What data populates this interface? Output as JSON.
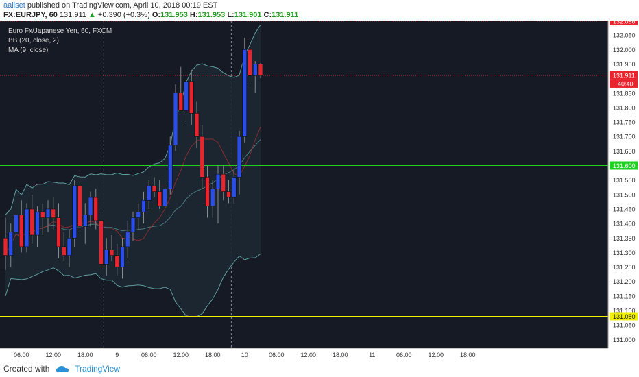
{
  "header": {
    "user": "aallset",
    "published_text": "published on TradingView.com, April 10, 2018 00:19 EST",
    "symbol": "FX:EURJPY, 60",
    "last": "131.911",
    "change": "+0.390 (+0.3%)",
    "o_label": "O:",
    "o": "131.953",
    "h_label": "H:",
    "h": "131.953",
    "l_label": "L:",
    "l": "131.901",
    "c_label": "C:",
    "c": "131.911"
  },
  "legend": {
    "title": "Euro Fx/Japanese Yen, 60, FXCM",
    "bb": "BB (20, close, 2)",
    "ma": "MA (9, close)"
  },
  "footer": {
    "created_with": "Created with",
    "brand": "TradingView"
  },
  "colors": {
    "background": "#161a25",
    "bull": "#2b4ee8",
    "bear": "#e8242e",
    "bb_band": "#5f9e9e",
    "ma": "#8b2c2c",
    "green_level": "#1fd21f",
    "yellow_level": "#f0f000",
    "current_price": "#e8242e"
  },
  "chart_data": {
    "type": "candlestick",
    "y_ticks": [
      "131.000",
      "131.050",
      "131.100",
      "131.150",
      "131.200",
      "131.250",
      "131.300",
      "131.350",
      "131.400",
      "131.450",
      "131.500",
      "131.550",
      "131.600",
      "131.650",
      "131.700",
      "131.750",
      "131.800",
      "131.850",
      "131.900",
      "131.950",
      "132.000",
      "132.050",
      "132.098"
    ],
    "ylim": [
      130.97,
      132.1
    ],
    "x_ticks": [
      {
        "label": "06:00",
        "i": 3
      },
      {
        "label": "12:00",
        "i": 9
      },
      {
        "label": "18:00",
        "i": 15
      },
      {
        "label": "9",
        "i": 21
      },
      {
        "label": "06:00",
        "i": 27
      },
      {
        "label": "12:00",
        "i": 33
      },
      {
        "label": "18:00",
        "i": 39
      },
      {
        "label": "10",
        "i": 45
      },
      {
        "label": "06:00",
        "i": 51
      },
      {
        "label": "12:00",
        "i": 57
      },
      {
        "label": "18:00",
        "i": 63
      },
      {
        "label": "11",
        "i": 69
      },
      {
        "label": "06:00",
        "i": 75
      },
      {
        "label": "12:00",
        "i": 81
      },
      {
        "label": "18:00",
        "i": 87
      }
    ],
    "session_lines": [
      18.5,
      42.5
    ],
    "levels": [
      {
        "name": "resistance",
        "value": 131.6,
        "label": "131.600",
        "color": "#1fd21f"
      },
      {
        "name": "support",
        "value": 131.08,
        "label": "131.080",
        "color": "#f0f000"
      }
    ],
    "current_price": {
      "value": 131.911,
      "label": "131.911",
      "countdown": "40:40"
    },
    "top_marker": {
      "value": 132.098,
      "label": "132.098"
    },
    "candles": [
      {
        "o": 131.35,
        "h": 131.42,
        "l": 131.24,
        "c": 131.29
      },
      {
        "o": 131.29,
        "h": 131.4,
        "l": 131.25,
        "c": 131.37
      },
      {
        "o": 131.37,
        "h": 131.46,
        "l": 131.31,
        "c": 131.43
      },
      {
        "o": 131.43,
        "h": 131.48,
        "l": 131.3,
        "c": 131.32
      },
      {
        "o": 131.32,
        "h": 131.47,
        "l": 131.3,
        "c": 131.45
      },
      {
        "o": 131.45,
        "h": 131.5,
        "l": 131.33,
        "c": 131.36
      },
      {
        "o": 131.36,
        "h": 131.46,
        "l": 131.32,
        "c": 131.44
      },
      {
        "o": 131.44,
        "h": 131.47,
        "l": 131.36,
        "c": 131.42
      },
      {
        "o": 131.42,
        "h": 131.48,
        "l": 131.37,
        "c": 131.45
      },
      {
        "o": 131.45,
        "h": 131.49,
        "l": 131.38,
        "c": 131.42
      },
      {
        "o": 131.42,
        "h": 131.47,
        "l": 131.28,
        "c": 131.32
      },
      {
        "o": 131.32,
        "h": 131.37,
        "l": 131.27,
        "c": 131.29
      },
      {
        "o": 131.29,
        "h": 131.38,
        "l": 131.25,
        "c": 131.35
      },
      {
        "o": 131.35,
        "h": 131.55,
        "l": 131.32,
        "c": 131.53
      },
      {
        "o": 131.53,
        "h": 131.58,
        "l": 131.37,
        "c": 131.39
      },
      {
        "o": 131.39,
        "h": 131.47,
        "l": 131.33,
        "c": 131.43
      },
      {
        "o": 131.43,
        "h": 131.51,
        "l": 131.39,
        "c": 131.49
      },
      {
        "o": 131.49,
        "h": 131.52,
        "l": 131.38,
        "c": 131.41
      },
      {
        "o": 131.41,
        "h": 131.44,
        "l": 131.22,
        "c": 131.26
      },
      {
        "o": 131.26,
        "h": 131.35,
        "l": 131.22,
        "c": 131.31
      },
      {
        "o": 131.31,
        "h": 131.36,
        "l": 131.27,
        "c": 131.29
      },
      {
        "o": 131.29,
        "h": 131.33,
        "l": 131.22,
        "c": 131.25
      },
      {
        "o": 131.25,
        "h": 131.35,
        "l": 131.21,
        "c": 131.32
      },
      {
        "o": 131.32,
        "h": 131.41,
        "l": 131.28,
        "c": 131.37
      },
      {
        "o": 131.37,
        "h": 131.44,
        "l": 131.34,
        "c": 131.42
      },
      {
        "o": 131.42,
        "h": 131.47,
        "l": 131.38,
        "c": 131.44
      },
      {
        "o": 131.44,
        "h": 131.51,
        "l": 131.4,
        "c": 131.48
      },
      {
        "o": 131.48,
        "h": 131.55,
        "l": 131.45,
        "c": 131.53
      },
      {
        "o": 131.53,
        "h": 131.56,
        "l": 131.49,
        "c": 131.51
      },
      {
        "o": 131.51,
        "h": 131.55,
        "l": 131.45,
        "c": 131.46
      },
      {
        "o": 131.46,
        "h": 131.54,
        "l": 131.43,
        "c": 131.52
      },
      {
        "o": 131.52,
        "h": 131.7,
        "l": 131.5,
        "c": 131.67
      },
      {
        "o": 131.67,
        "h": 131.88,
        "l": 131.65,
        "c": 131.85
      },
      {
        "o": 131.85,
        "h": 131.94,
        "l": 131.8,
        "c": 131.79
      },
      {
        "o": 131.79,
        "h": 131.91,
        "l": 131.75,
        "c": 131.89
      },
      {
        "o": 131.89,
        "h": 131.93,
        "l": 131.74,
        "c": 131.78
      },
      {
        "o": 131.78,
        "h": 131.82,
        "l": 131.66,
        "c": 131.7
      },
      {
        "o": 131.7,
        "h": 131.74,
        "l": 131.52,
        "c": 131.56
      },
      {
        "o": 131.56,
        "h": 131.6,
        "l": 131.42,
        "c": 131.46
      },
      {
        "o": 131.46,
        "h": 131.55,
        "l": 131.42,
        "c": 131.52
      },
      {
        "o": 131.52,
        "h": 131.6,
        "l": 131.4,
        "c": 131.57
      },
      {
        "o": 131.57,
        "h": 131.6,
        "l": 131.48,
        "c": 131.51
      },
      {
        "o": 131.51,
        "h": 131.55,
        "l": 131.47,
        "c": 131.49
      },
      {
        "o": 131.49,
        "h": 131.58,
        "l": 131.47,
        "c": 131.56
      },
      {
        "o": 131.56,
        "h": 131.72,
        "l": 131.5,
        "c": 131.7
      },
      {
        "o": 131.7,
        "h": 132.04,
        "l": 131.68,
        "c": 132.0
      },
      {
        "o": 132.0,
        "h": 132.03,
        "l": 131.88,
        "c": 131.91
      },
      {
        "o": 131.91,
        "h": 131.96,
        "l": 131.85,
        "c": 131.95
      },
      {
        "o": 131.95,
        "h": 131.953,
        "l": 131.901,
        "c": 131.911
      }
    ],
    "x_series_labels": []
  }
}
